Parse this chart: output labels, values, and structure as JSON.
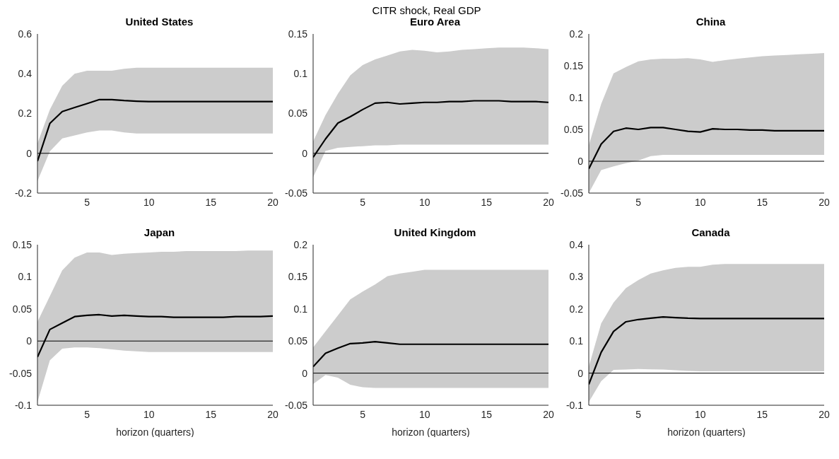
{
  "chart_data": [
    {
      "type": "line",
      "title": "United States",
      "annotations": [
        "CITR shock, Real GDP"
      ],
      "xlim": [
        1,
        20
      ],
      "xticks": [
        5,
        10,
        15,
        20
      ],
      "ylim": [
        -0.2,
        0.6
      ],
      "yticks": [
        -0.2,
        0,
        0.2,
        0.4,
        0.6
      ],
      "ref_lines": [
        {
          "axis": "y",
          "value": 0,
          "color": "#000000"
        }
      ],
      "x": [
        1,
        2,
        3,
        4,
        5,
        6,
        7,
        8,
        9,
        10,
        11,
        12,
        13,
        14,
        15,
        16,
        17,
        18,
        19,
        20
      ],
      "series": [
        {
          "color": "#000000",
          "values": [
            -0.04,
            0.15,
            0.21,
            0.23,
            0.25,
            0.27,
            0.27,
            0.265,
            0.262,
            0.26,
            0.26,
            0.26,
            0.26,
            0.26,
            0.26,
            0.26,
            0.26,
            0.26,
            0.26,
            0.26
          ],
          "lower": [
            -0.14,
            0.01,
            0.075,
            0.09,
            0.105,
            0.115,
            0.115,
            0.105,
            0.1,
            0.1,
            0.1,
            0.1,
            0.1,
            0.1,
            0.1,
            0.1,
            0.1,
            0.1,
            0.1,
            0.1
          ],
          "upper": [
            0.05,
            0.22,
            0.34,
            0.4,
            0.415,
            0.415,
            0.415,
            0.425,
            0.43,
            0.43,
            0.43,
            0.43,
            0.43,
            0.43,
            0.43,
            0.43,
            0.43,
            0.43,
            0.43,
            0.43
          ]
        }
      ]
    },
    {
      "type": "line",
      "title": "Euro Area",
      "xlim": [
        1,
        20
      ],
      "xticks": [
        5,
        10,
        15,
        20
      ],
      "ylim": [
        -0.05,
        0.15
      ],
      "yticks": [
        -0.05,
        0,
        0.05,
        0.1,
        0.15
      ],
      "ref_lines": [
        {
          "axis": "y",
          "value": 0,
          "color": "#000000"
        }
      ],
      "x": [
        1,
        2,
        3,
        4,
        5,
        6,
        7,
        8,
        9,
        10,
        11,
        12,
        13,
        14,
        15,
        16,
        17,
        18,
        19,
        20
      ],
      "series": [
        {
          "color": "#000000",
          "values": [
            -0.005,
            0.018,
            0.038,
            0.046,
            0.055,
            0.063,
            0.064,
            0.062,
            0.063,
            0.064,
            0.064,
            0.065,
            0.065,
            0.066,
            0.066,
            0.066,
            0.065,
            0.065,
            0.065,
            0.064
          ],
          "lower": [
            -0.03,
            0.003,
            0.007,
            0.008,
            0.009,
            0.01,
            0.01,
            0.011,
            0.011,
            0.011,
            0.011,
            0.011,
            0.011,
            0.011,
            0.011,
            0.011,
            0.011,
            0.011,
            0.011,
            0.011
          ],
          "upper": [
            0.015,
            0.048,
            0.075,
            0.098,
            0.111,
            0.118,
            0.123,
            0.128,
            0.13,
            0.129,
            0.127,
            0.128,
            0.13,
            0.131,
            0.132,
            0.133,
            0.133,
            0.133,
            0.132,
            0.131
          ]
        }
      ]
    },
    {
      "type": "line",
      "title": "China",
      "xlim": [
        1,
        20
      ],
      "xticks": [
        5,
        10,
        15,
        20
      ],
      "ylim": [
        -0.05,
        0.2
      ],
      "yticks": [
        -0.05,
        0,
        0.05,
        0.1,
        0.15,
        0.2
      ],
      "ref_lines": [
        {
          "axis": "y",
          "value": 0,
          "color": "#000000"
        }
      ],
      "x": [
        1,
        2,
        3,
        4,
        5,
        6,
        7,
        8,
        9,
        10,
        11,
        12,
        13,
        14,
        15,
        16,
        17,
        18,
        19,
        20
      ],
      "series": [
        {
          "color": "#000000",
          "values": [
            -0.012,
            0.027,
            0.047,
            0.052,
            0.05,
            0.053,
            0.053,
            0.05,
            0.047,
            0.046,
            0.051,
            0.05,
            0.05,
            0.049,
            0.049,
            0.048,
            0.048,
            0.048,
            0.048,
            0.048
          ],
          "lower": [
            -0.05,
            -0.014,
            -0.008,
            -0.003,
            0.001,
            0.008,
            0.01,
            0.01,
            0.01,
            0.01,
            0.01,
            0.01,
            0.01,
            0.01,
            0.01,
            0.01,
            0.01,
            0.01,
            0.01,
            0.01
          ],
          "upper": [
            0.025,
            0.09,
            0.138,
            0.148,
            0.157,
            0.16,
            0.161,
            0.161,
            0.162,
            0.16,
            0.156,
            0.159,
            0.161,
            0.163,
            0.165,
            0.166,
            0.167,
            0.168,
            0.169,
            0.17
          ]
        }
      ]
    },
    {
      "type": "line",
      "title": "Japan",
      "xlabel": "horizon (quarters)",
      "xlim": [
        1,
        20
      ],
      "xticks": [
        5,
        10,
        15,
        20
      ],
      "ylim": [
        -0.1,
        0.15
      ],
      "yticks": [
        -0.1,
        -0.05,
        0,
        0.05,
        0.1,
        0.15
      ],
      "ref_lines": [
        {
          "axis": "y",
          "value": 0,
          "color": "#000000"
        }
      ],
      "x": [
        1,
        2,
        3,
        4,
        5,
        6,
        7,
        8,
        9,
        10,
        11,
        12,
        13,
        14,
        15,
        16,
        17,
        18,
        19,
        20
      ],
      "series": [
        {
          "color": "#000000",
          "values": [
            -0.025,
            0.018,
            0.028,
            0.038,
            0.04,
            0.041,
            0.039,
            0.04,
            0.039,
            0.038,
            0.038,
            0.037,
            0.037,
            0.037,
            0.037,
            0.037,
            0.038,
            0.038,
            0.038,
            0.039
          ],
          "lower": [
            -0.095,
            -0.03,
            -0.012,
            -0.01,
            -0.01,
            -0.011,
            -0.013,
            -0.015,
            -0.016,
            -0.017,
            -0.017,
            -0.017,
            -0.017,
            -0.017,
            -0.017,
            -0.017,
            -0.017,
            -0.017,
            -0.017,
            -0.017
          ],
          "upper": [
            0.03,
            0.07,
            0.11,
            0.13,
            0.138,
            0.138,
            0.134,
            0.136,
            0.137,
            0.138,
            0.139,
            0.139,
            0.14,
            0.14,
            0.14,
            0.14,
            0.14,
            0.141,
            0.141,
            0.141
          ]
        }
      ]
    },
    {
      "type": "line",
      "title": "United Kingdom",
      "xlabel": "horizon (quarters)",
      "xlim": [
        1,
        20
      ],
      "xticks": [
        5,
        10,
        15,
        20
      ],
      "ylim": [
        -0.05,
        0.2
      ],
      "yticks": [
        -0.05,
        0,
        0.05,
        0.1,
        0.15,
        0.2
      ],
      "ref_lines": [
        {
          "axis": "y",
          "value": 0,
          "color": "#000000"
        }
      ],
      "x": [
        1,
        2,
        3,
        4,
        5,
        6,
        7,
        8,
        9,
        10,
        11,
        12,
        13,
        14,
        15,
        16,
        17,
        18,
        19,
        20
      ],
      "series": [
        {
          "color": "#000000",
          "values": [
            0.01,
            0.031,
            0.039,
            0.046,
            0.047,
            0.049,
            0.047,
            0.045,
            0.045,
            0.045,
            0.045,
            0.045,
            0.045,
            0.045,
            0.045,
            0.045,
            0.045,
            0.045,
            0.045,
            0.045
          ],
          "lower": [
            -0.017,
            -0.003,
            -0.007,
            -0.018,
            -0.022,
            -0.023,
            -0.023,
            -0.023,
            -0.023,
            -0.023,
            -0.023,
            -0.023,
            -0.023,
            -0.023,
            -0.023,
            -0.023,
            -0.023,
            -0.023,
            -0.023,
            -0.023
          ],
          "upper": [
            0.04,
            0.065,
            0.09,
            0.115,
            0.127,
            0.138,
            0.151,
            0.155,
            0.158,
            0.161,
            0.161,
            0.161,
            0.161,
            0.161,
            0.161,
            0.161,
            0.161,
            0.161,
            0.161,
            0.161
          ]
        }
      ]
    },
    {
      "type": "line",
      "title": "Canada",
      "xlabel": "horizon (quarters)",
      "xlim": [
        1,
        20
      ],
      "xticks": [
        5,
        10,
        15,
        20
      ],
      "ylim": [
        -0.1,
        0.4
      ],
      "yticks": [
        -0.1,
        0,
        0.1,
        0.2,
        0.3,
        0.4
      ],
      "ref_lines": [
        {
          "axis": "y",
          "value": 0,
          "color": "#000000"
        }
      ],
      "x": [
        1,
        2,
        3,
        4,
        5,
        6,
        7,
        8,
        9,
        10,
        11,
        12,
        13,
        14,
        15,
        16,
        17,
        18,
        19,
        20
      ],
      "series": [
        {
          "color": "#000000",
          "values": [
            -0.035,
            0.065,
            0.13,
            0.16,
            0.167,
            0.171,
            0.175,
            0.173,
            0.171,
            0.17,
            0.17,
            0.17,
            0.17,
            0.17,
            0.17,
            0.17,
            0.17,
            0.17,
            0.17,
            0.17
          ],
          "lower": [
            -0.09,
            -0.025,
            0.01,
            0.011,
            0.013,
            0.012,
            0.011,
            0.009,
            0.007,
            0.006,
            0.006,
            0.006,
            0.006,
            0.006,
            0.006,
            0.006,
            0.006,
            0.006,
            0.006,
            0.006
          ],
          "upper": [
            0.02,
            0.155,
            0.22,
            0.265,
            0.29,
            0.31,
            0.32,
            0.328,
            0.331,
            0.331,
            0.338,
            0.34,
            0.34,
            0.34,
            0.34,
            0.34,
            0.34,
            0.34,
            0.34,
            0.34
          ]
        }
      ]
    }
  ]
}
